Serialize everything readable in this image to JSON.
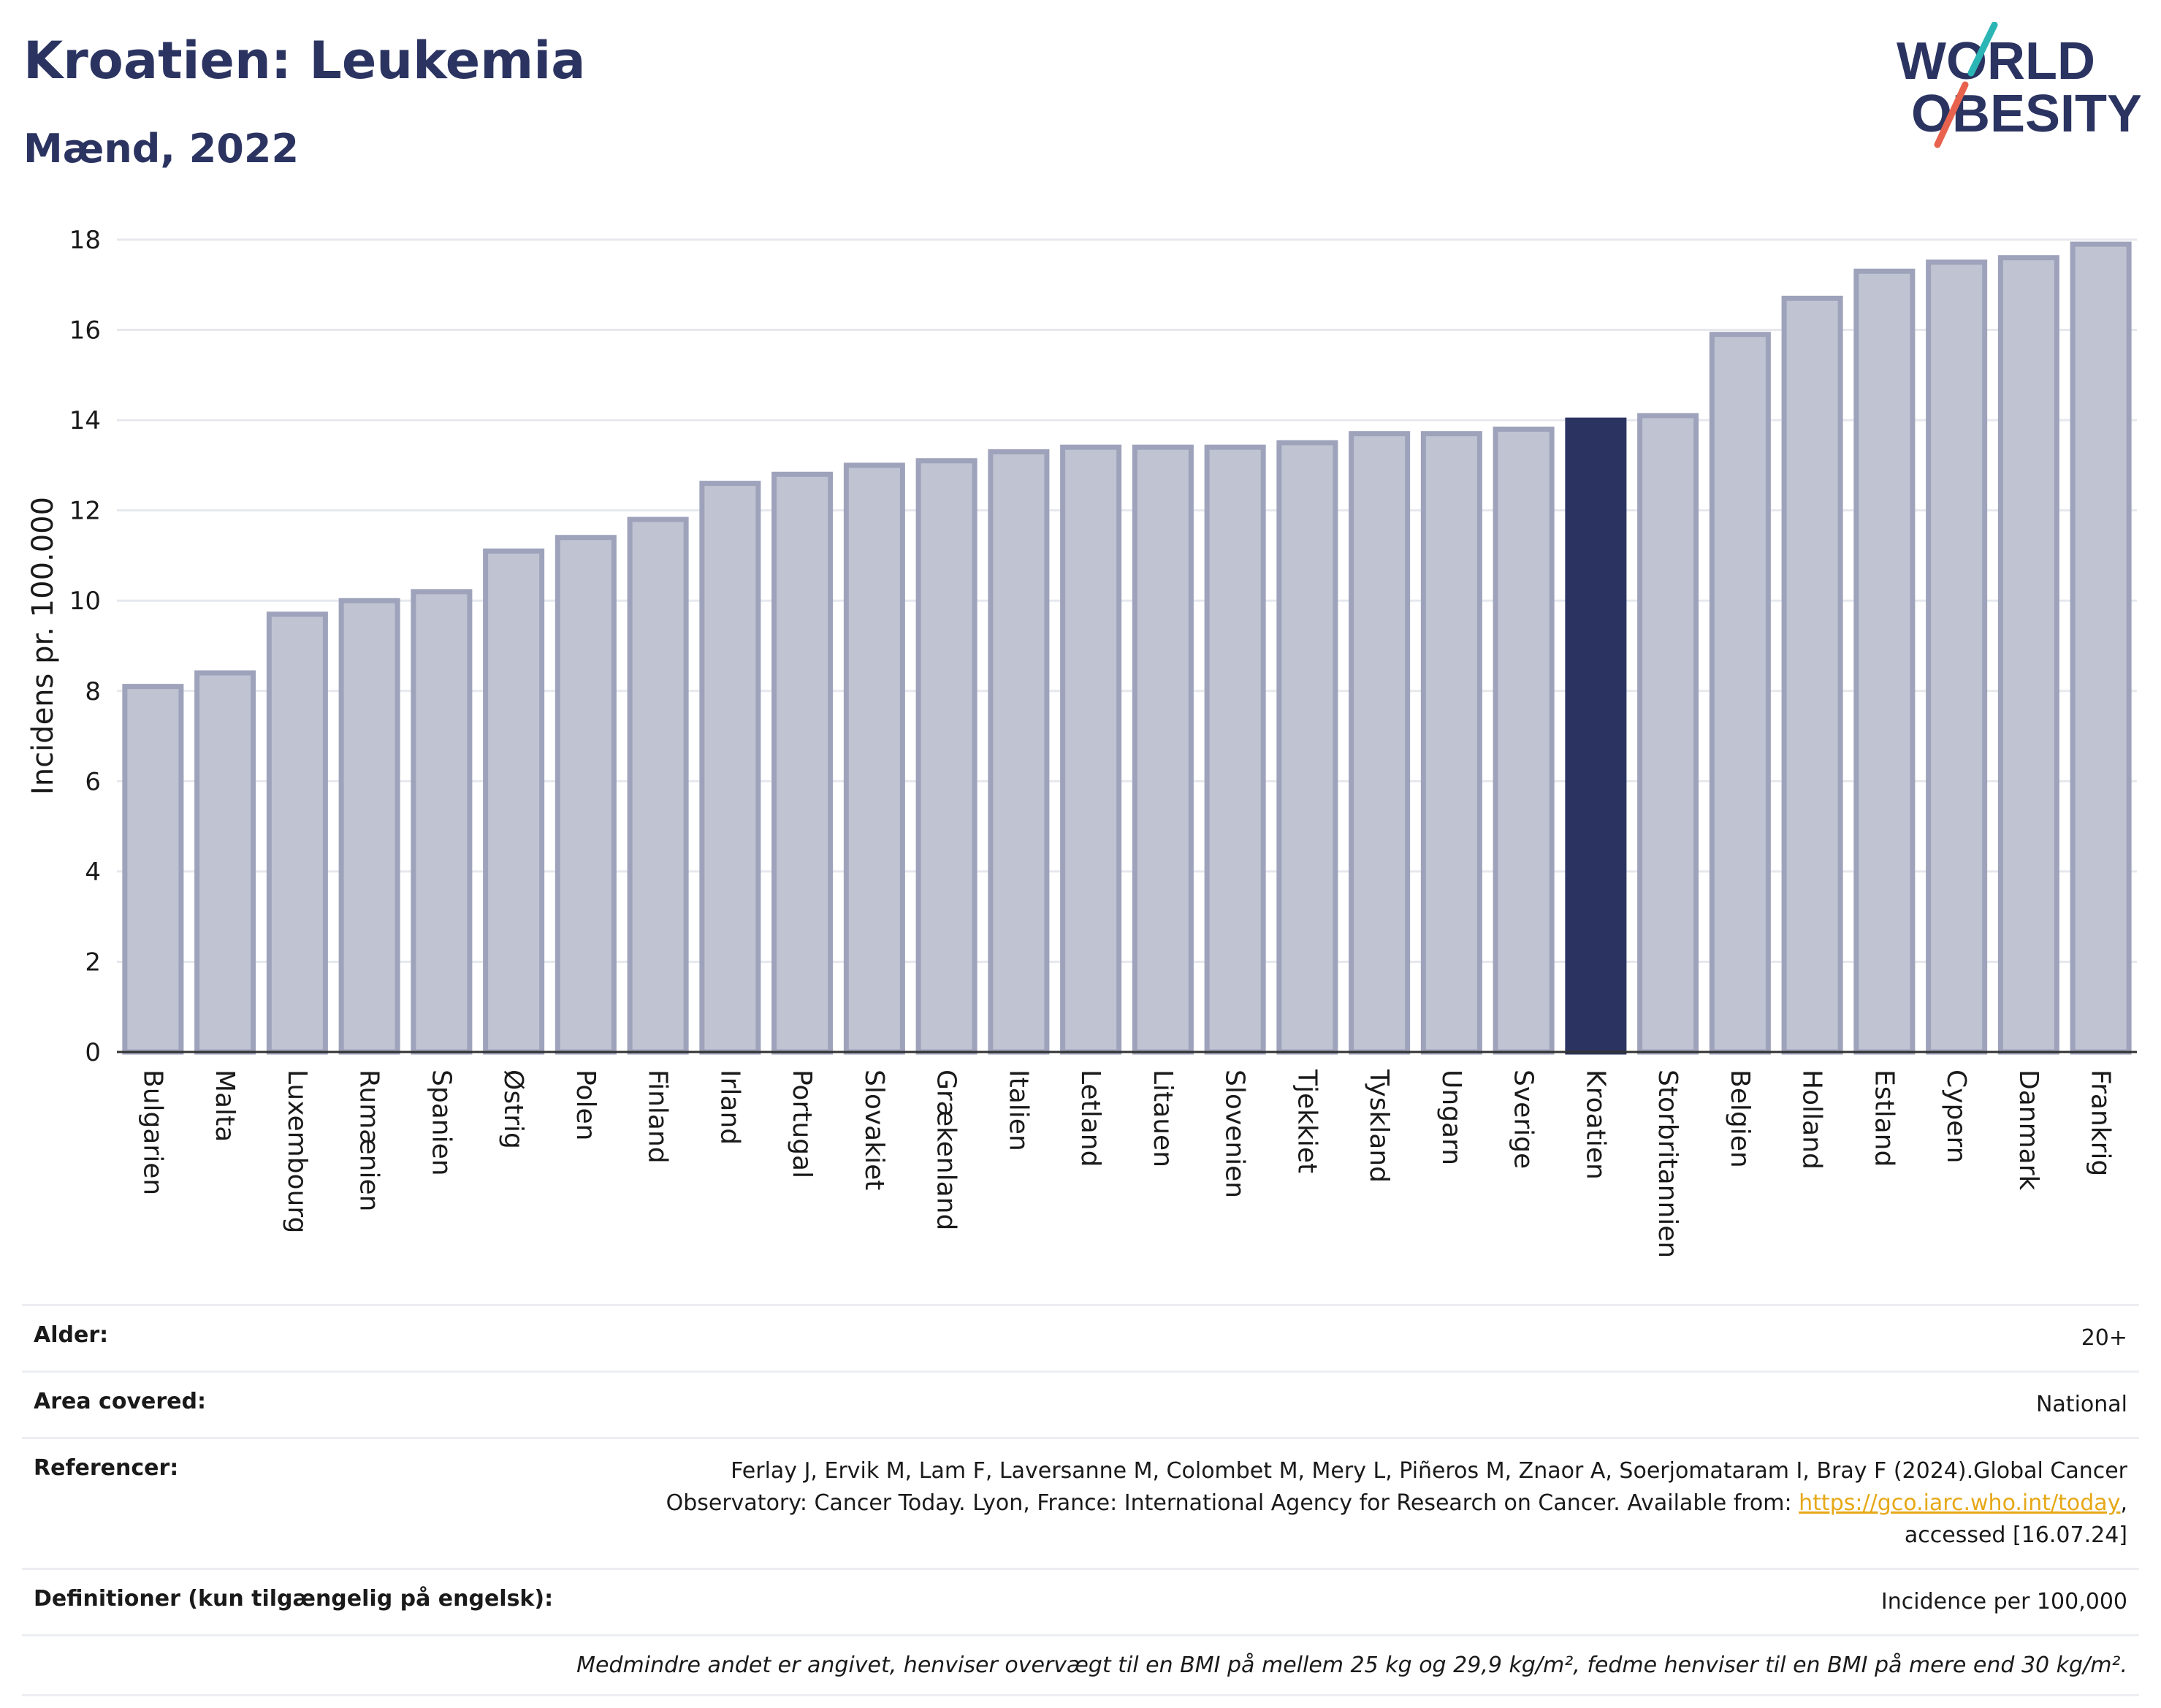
{
  "header": {
    "title": "Kroatien: Leukemia",
    "subtitle": "Mænd, 2022"
  },
  "logo": {
    "line1": "WORLD",
    "line2": "OBESITY",
    "accent_colors": [
      "#2bb5b5",
      "#e8624e"
    ]
  },
  "chart_data": {
    "type": "bar",
    "ylabel": "Incidens pr. 100.000",
    "ylim": [
      0,
      18
    ],
    "yticks": [
      0,
      2,
      4,
      6,
      8,
      10,
      12,
      14,
      16,
      18
    ],
    "categories": [
      "Bulgarien",
      "Malta",
      "Luxembourg",
      "Rumænien",
      "Spanien",
      "Østrig",
      "Polen",
      "Finland",
      "Irland",
      "Portugal",
      "Slovakiet",
      "Grækenland",
      "Italien",
      "Letland",
      "Litauen",
      "Slovenien",
      "Tjekkiet",
      "Tyskland",
      "Ungarn",
      "Sverige",
      "Kroatien",
      "Storbritannien",
      "Belgien",
      "Holland",
      "Estland",
      "Cypern",
      "Danmark",
      "Frankrig"
    ],
    "values": [
      8.1,
      8.4,
      9.7,
      10.0,
      10.2,
      11.1,
      11.4,
      11.8,
      12.6,
      12.8,
      13.0,
      13.1,
      13.3,
      13.4,
      13.4,
      13.4,
      13.5,
      13.7,
      13.7,
      13.8,
      14.0,
      14.1,
      15.9,
      16.7,
      17.3,
      17.5,
      17.6,
      17.9
    ],
    "highlight": "Kroatien",
    "colors": {
      "bar": "#c0c3d1",
      "bar_border": "#9ea3bb",
      "highlight": "#2b3461"
    },
    "grid": true
  },
  "meta": {
    "rows": [
      {
        "label": "Alder:",
        "value": "20+"
      },
      {
        "label": "Area covered:",
        "value": "National"
      },
      {
        "label": "Referencer:",
        "value_pre": "Ferlay J, Ervik M, Lam F, Laversanne M, Colombet M, Mery L, Piñeros M, Znaor A, Soerjomataram I, Bray F (2024).Global Cancer Observatory: Cancer Today. Lyon, France: International Agency for Research on Cancer. Available from: ",
        "link": "https://gco.iarc.who.int/today",
        "value_post": ", accessed [16.07.24]"
      },
      {
        "label": "Definitioner (kun tilgængelig på engelsk):",
        "value": "Incidence per 100,000"
      }
    ],
    "note": "Medmindre andet er angivet, henviser overvægt til en BMI på mellem 25 kg og 29,9 kg/m², fedme henviser til en BMI på mere end 30 kg/m²."
  }
}
